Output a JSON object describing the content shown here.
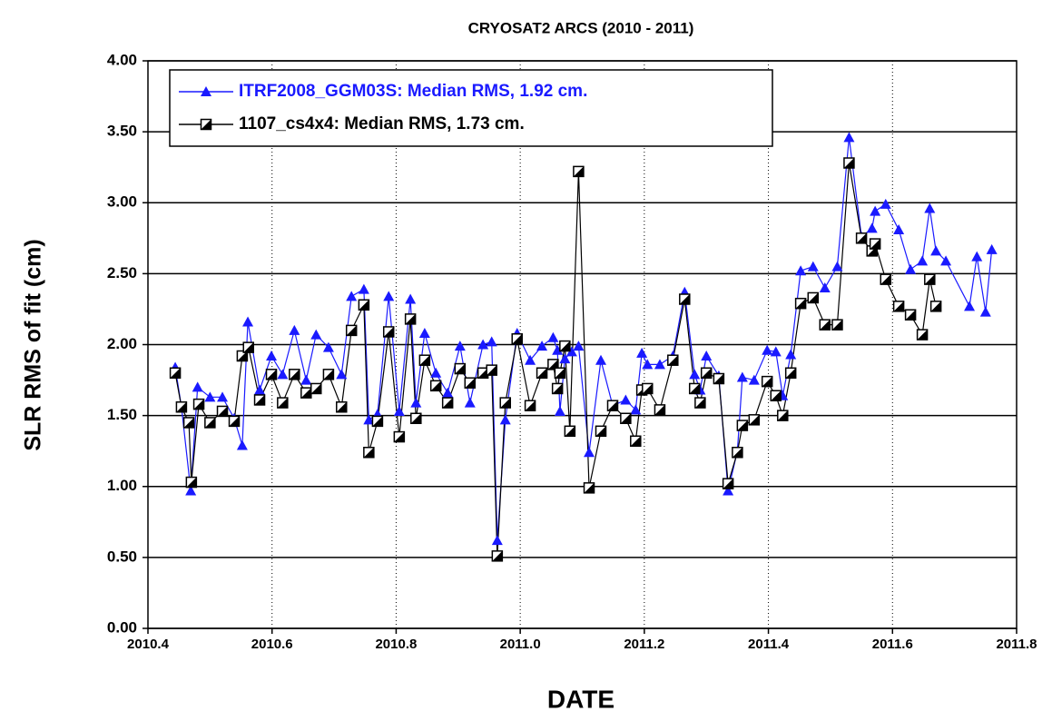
{
  "chart_data": {
    "type": "line",
    "title": "CRYOSAT2 ARCS (2010 - 2011)",
    "x_label": "DATE",
    "y_label": "SLR RMS of fit (cm)",
    "xlim": [
      2010.4,
      2011.8
    ],
    "xticks": [
      2010.4,
      2010.6,
      2010.8,
      {
        "value": 2011,
        "label": "2011.0"
      },
      2011.2,
      2011.4,
      2011.6,
      2011.8
    ],
    "ylim": [
      0,
      4
    ],
    "yticks": [
      {
        "value": 0,
        "label": "0.00"
      },
      {
        "value": 0.5,
        "label": "0.50"
      },
      {
        "value": 1,
        "label": "1.00"
      },
      {
        "value": 1.5,
        "label": "1.50"
      },
      {
        "value": 2,
        "label": "2.00"
      },
      {
        "value": 2.5,
        "label": "2.50"
      },
      {
        "value": 3,
        "label": "3.00"
      },
      {
        "value": 3.5,
        "label": "3.50"
      },
      {
        "value": 4,
        "label": "4.00"
      }
    ],
    "grid": true,
    "legend_position": "upper left",
    "series": [
      {
        "name": "ITRF2008_GGM03S: Median RMS, 1.92 cm.",
        "color": "#1a1aff",
        "marker": "triangle",
        "x": [
          2010.444,
          2010.454,
          2010.469,
          2010.48,
          2010.5,
          2010.52,
          2010.539,
          2010.552,
          2010.561,
          2010.58,
          2010.599,
          2010.617,
          2010.636,
          2010.655,
          2010.671,
          2010.691,
          2010.712,
          2010.728,
          2010.748,
          2010.756,
          2010.77,
          2010.788,
          2010.805,
          2010.823,
          2010.832,
          2010.846,
          2010.864,
          2010.883,
          2010.903,
          2010.919,
          2010.94,
          2010.954,
          2010.963,
          2010.976,
          2010.995,
          2011.016,
          2011.035,
          2011.053,
          2011.06,
          2011.064,
          2011.072,
          2011.083,
          2011.094,
          2011.111,
          2011.13,
          2011.149,
          2011.17,
          2011.186,
          2011.196,
          2011.205,
          2011.225,
          2011.246,
          2011.265,
          2011.281,
          2011.29,
          2011.3,
          2011.32,
          2011.335,
          2011.35,
          2011.358,
          2011.377,
          2011.398,
          2011.412,
          2011.423,
          2011.436,
          2011.452,
          2011.472,
          2011.491,
          2011.511,
          2011.53,
          2011.55,
          2011.567,
          2011.572,
          2011.589,
          2011.61,
          2011.629,
          2011.648,
          2011.66,
          2011.67,
          2011.686,
          2011.724,
          2011.736,
          2011.75,
          2011.76
        ],
        "values": [
          1.84,
          1.56,
          0.97,
          1.7,
          1.63,
          1.63,
          1.48,
          1.29,
          2.16,
          1.68,
          1.92,
          1.79,
          2.1,
          1.75,
          2.07,
          1.98,
          1.79,
          2.34,
          2.39,
          1.47,
          1.51,
          2.34,
          1.53,
          2.32,
          1.59,
          2.08,
          1.8,
          1.66,
          1.99,
          1.59,
          2.0,
          2.02,
          0.62,
          1.47,
          2.08,
          1.89,
          1.99,
          2.05,
          1.96,
          1.53,
          1.9,
          1.95,
          1.99,
          1.24,
          1.89,
          1.57,
          1.61,
          1.54,
          1.94,
          1.86,
          1.86,
          1.92,
          2.37,
          1.79,
          1.68,
          1.92,
          1.78,
          0.97,
          1.25,
          1.77,
          1.75,
          1.96,
          1.95,
          1.64,
          1.93,
          2.52,
          2.55,
          2.4,
          2.55,
          3.46,
          2.76,
          2.82,
          2.94,
          2.99,
          2.81,
          2.53,
          2.59,
          2.96,
          2.66,
          2.59,
          2.27,
          2.62,
          2.23,
          2.67
        ]
      },
      {
        "name": "1107_cs4x4: Median RMS, 1.73 cm.",
        "color": "#000000",
        "marker": "square",
        "x": [
          2010.444,
          2010.454,
          2010.466,
          2010.47,
          2010.482,
          2010.5,
          2010.52,
          2010.539,
          2010.552,
          2010.562,
          2010.58,
          2010.599,
          2010.617,
          2010.636,
          2010.655,
          2010.671,
          2010.691,
          2010.712,
          2010.728,
          2010.748,
          2010.756,
          2010.77,
          2010.788,
          2010.805,
          2010.823,
          2010.832,
          2010.846,
          2010.864,
          2010.883,
          2010.903,
          2010.919,
          2010.94,
          2010.954,
          2010.963,
          2010.976,
          2010.995,
          2011.016,
          2011.035,
          2011.053,
          2011.06,
          2011.064,
          2011.072,
          2011.08,
          2011.094,
          2011.111,
          2011.13,
          2011.149,
          2011.17,
          2011.186,
          2011.196,
          2011.205,
          2011.225,
          2011.246,
          2011.265,
          2011.281,
          2011.29,
          2011.3,
          2011.32,
          2011.335,
          2011.35,
          2011.358,
          2011.377,
          2011.398,
          2011.412,
          2011.423,
          2011.436,
          2011.452,
          2011.472,
          2011.491,
          2011.511,
          2011.53,
          2011.55,
          2011.567,
          2011.572,
          2011.589,
          2011.61,
          2011.629,
          2011.648,
          2011.66,
          2011.67
        ],
        "values": [
          1.8,
          1.56,
          1.45,
          1.03,
          1.58,
          1.45,
          1.53,
          1.46,
          1.92,
          1.98,
          1.61,
          1.79,
          1.59,
          1.79,
          1.66,
          1.69,
          1.79,
          1.56,
          2.1,
          2.28,
          1.24,
          1.46,
          2.09,
          1.35,
          2.18,
          1.48,
          1.89,
          1.71,
          1.59,
          1.83,
          1.73,
          1.8,
          1.82,
          0.51,
          1.59,
          2.04,
          1.57,
          1.8,
          1.86,
          1.69,
          1.8,
          1.99,
          1.39,
          3.22,
          0.99,
          1.39,
          1.57,
          1.48,
          1.32,
          1.68,
          1.69,
          1.54,
          1.89,
          2.32,
          1.69,
          1.59,
          1.8,
          1.76,
          1.02,
          1.24,
          1.43,
          1.47,
          1.74,
          1.64,
          1.5,
          1.8,
          2.29,
          2.33,
          2.14,
          2.14,
          3.28,
          2.75,
          2.66,
          2.71,
          2.46,
          2.27,
          2.21,
          2.07,
          2.46,
          2.27
        ]
      }
    ]
  }
}
